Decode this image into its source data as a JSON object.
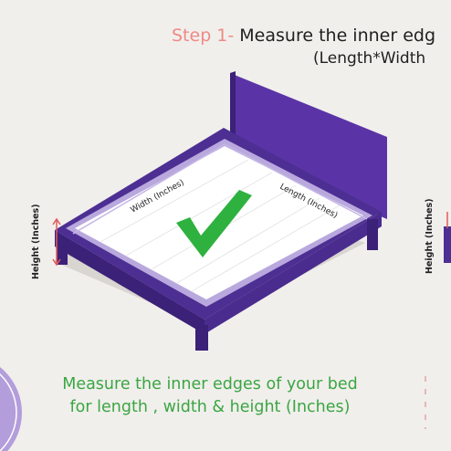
{
  "header": {
    "step_label": "Step 1-",
    "title_text": " Measure the inner edg",
    "subtitle": "(Length*Width"
  },
  "labels": {
    "width": "Width (Inches)",
    "length": "Length (Inches)",
    "height": "Height (Inches)"
  },
  "caption": {
    "line1": "Measure the inner edges of your bed",
    "line2": "for length , width & height (Inches)"
  },
  "colors": {
    "background": "#f1efec",
    "step": "#ee8a86",
    "bed_frame": "#4d2f93",
    "bed_frame_dark": "#3b2177",
    "headboard": "#5a34a6",
    "mattress": "#ffffff",
    "mattress_border": "#b9a8dd",
    "check": "#2fb13f",
    "caption": "#3aa642",
    "shadow": "#d9d5d0",
    "accent_circle": "#b39ddb",
    "arrow_red": "#e25a5a"
  },
  "icons": {
    "checkmark": "check-icon",
    "height_arrow": "double-arrow-vertical-icon"
  }
}
